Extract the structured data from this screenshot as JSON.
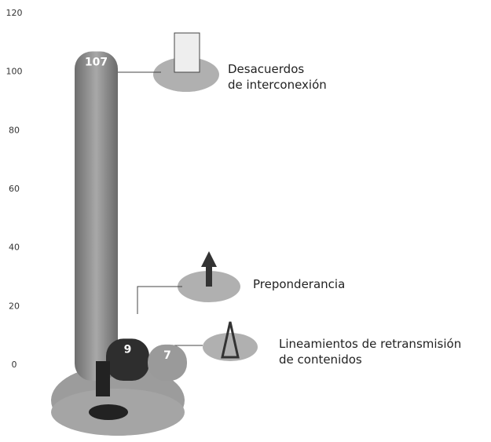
{
  "chart_data": {
    "type": "bar",
    "categories": [
      "Desacuerdos\nde interconexión",
      "Preponderancia",
      "Lineamientos de retransmisión\nde contenidos"
    ],
    "values": [
      107,
      9,
      7
    ],
    "colors": [
      "#8a8a8a",
      "#2e2e2e",
      "#9a9a9a"
    ],
    "ylim": [
      0,
      120
    ],
    "yticks": [
      0,
      20,
      40,
      60,
      80,
      100,
      120
    ]
  }
}
